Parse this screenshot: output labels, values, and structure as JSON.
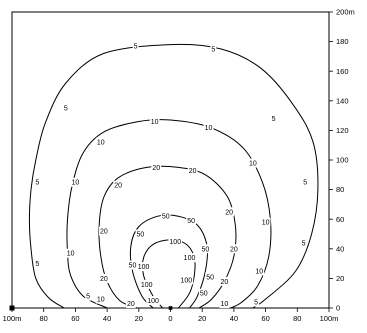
{
  "chart_data": {
    "type": "contour",
    "x_axis": {
      "range": [
        -100,
        100
      ],
      "ticks": [
        -100,
        -80,
        -60,
        -40,
        -20,
        0,
        20,
        40,
        60,
        80,
        100
      ],
      "tick_labels": [
        "100m",
        "80",
        "60",
        "40",
        "20",
        "0",
        "20",
        "40",
        "60",
        "80",
        "100m"
      ]
    },
    "y_axis": {
      "position": "right",
      "range": [
        0,
        200
      ],
      "ticks": [
        0,
        20,
        40,
        60,
        80,
        100,
        120,
        140,
        160,
        180,
        200
      ],
      "tick_labels": [
        "0",
        "20",
        "40",
        "60",
        "80",
        "100",
        "120",
        "140",
        "160",
        "180",
        "200m"
      ]
    },
    "grid": false,
    "markers": [
      {
        "shape": "square",
        "x": -100,
        "y": 0
      },
      {
        "shape": "square",
        "x": 0,
        "y": 0
      }
    ],
    "contours": [
      {
        "level": "5",
        "points": [
          [
            -67,
            0
          ],
          [
            -77,
            7
          ],
          [
            -85,
            20
          ],
          [
            -88,
            40
          ],
          [
            -89,
            60
          ],
          [
            -88,
            80
          ],
          [
            -85,
            100
          ],
          [
            -79,
            125
          ],
          [
            -66,
            152
          ],
          [
            -42,
            172
          ],
          [
            0,
            178
          ],
          [
            32,
            175
          ],
          [
            57,
            162
          ],
          [
            77,
            138
          ],
          [
            90,
            112
          ],
          [
            93,
            80
          ],
          [
            89,
            50
          ],
          [
            79,
            25
          ],
          [
            60,
            6
          ],
          [
            52,
            0
          ]
        ],
        "label_positions": [
          [
            -84,
            30
          ],
          [
            -84,
            85
          ],
          [
            -66,
            135
          ],
          [
            -22,
            177
          ],
          [
            27,
            175
          ],
          [
            65,
            128
          ],
          [
            85,
            85
          ],
          [
            84,
            44
          ],
          [
            54,
            4
          ],
          [
            -52,
            8
          ]
        ]
      },
      {
        "level": "10",
        "points": [
          [
            -40,
            0
          ],
          [
            -55,
            8
          ],
          [
            -63,
            22
          ],
          [
            -65,
            38
          ],
          [
            -65,
            60
          ],
          [
            -62,
            83
          ],
          [
            -55,
            105
          ],
          [
            -42,
            119
          ],
          [
            -20,
            126
          ],
          [
            0,
            127
          ],
          [
            25,
            122
          ],
          [
            46,
            108
          ],
          [
            58,
            85
          ],
          [
            63,
            60
          ],
          [
            62,
            35
          ],
          [
            55,
            15
          ],
          [
            45,
            4
          ],
          [
            38,
            0
          ]
        ],
        "label_positions": [
          [
            -63,
            37
          ],
          [
            -60,
            85
          ],
          [
            -44,
            112
          ],
          [
            -10,
            126
          ],
          [
            24,
            122
          ],
          [
            52,
            98
          ],
          [
            60,
            58
          ],
          [
            56,
            25
          ],
          [
            34,
            3
          ],
          [
            -44,
            6
          ]
        ]
      },
      {
        "level": "20",
        "points": [
          [
            -21,
            0
          ],
          [
            -32,
            5
          ],
          [
            -40,
            18
          ],
          [
            -44,
            35
          ],
          [
            -45,
            56
          ],
          [
            -42,
            75
          ],
          [
            -33,
            88
          ],
          [
            -15,
            95
          ],
          [
            5,
            95
          ],
          [
            22,
            90
          ],
          [
            36,
            75
          ],
          [
            41,
            55
          ],
          [
            40,
            35
          ],
          [
            34,
            18
          ],
          [
            26,
            6
          ],
          [
            18,
            0
          ]
        ],
        "label_positions": [
          [
            -42,
            20
          ],
          [
            -42,
            52
          ],
          [
            -33,
            83
          ],
          [
            -9,
            95
          ],
          [
            14,
            93
          ],
          [
            37,
            65
          ],
          [
            40,
            40
          ],
          [
            34,
            18
          ],
          [
            -25,
            3
          ]
        ]
      },
      {
        "level": "50",
        "points": [
          [
            -11,
            0
          ],
          [
            -18,
            8
          ],
          [
            -24,
            25
          ],
          [
            -25,
            42
          ],
          [
            -20,
            55
          ],
          [
            -8,
            62
          ],
          [
            5,
            62
          ],
          [
            17,
            56
          ],
          [
            23,
            42
          ],
          [
            22,
            25
          ],
          [
            17,
            8
          ],
          [
            12,
            0
          ]
        ],
        "label_positions": [
          [
            -24,
            29
          ],
          [
            -19,
            50
          ],
          [
            -3,
            62
          ],
          [
            13,
            59
          ],
          [
            22,
            40
          ],
          [
            25,
            21
          ],
          [
            21,
            10
          ]
        ]
      },
      {
        "level": "100",
        "points": [
          [
            -5,
            0
          ],
          [
            -11,
            8
          ],
          [
            -17,
            22
          ],
          [
            -17,
            34
          ],
          [
            -11,
            43
          ],
          [
            0,
            46
          ],
          [
            10,
            43
          ],
          [
            15,
            34
          ],
          [
            15,
            22
          ],
          [
            12,
            10
          ],
          [
            5,
            0
          ]
        ],
        "label_positions": [
          [
            -17,
            28
          ],
          [
            -15,
            16
          ],
          [
            -11,
            5
          ],
          [
            3,
            45
          ],
          [
            12,
            34
          ],
          [
            10,
            19
          ]
        ]
      }
    ]
  }
}
